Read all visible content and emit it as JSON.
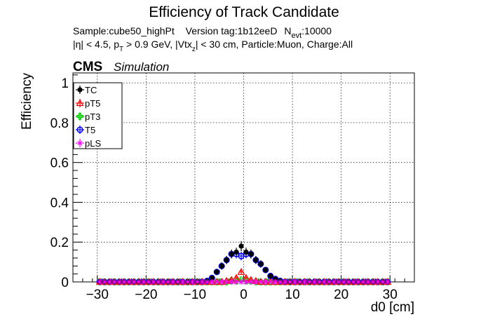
{
  "header": {
    "title": "Efficiency of Track Candidate",
    "line1": {
      "sample": "Sample:cube50_highPt",
      "version": "Version tag:1b12eeD",
      "nevt_label": "N",
      "nevt_sub": "evt",
      "nevt_value": ":10000"
    },
    "line2": {
      "eta_part": "|η| < 4.5, p",
      "pt_sub": "T",
      "pt_part": " > 0.9 GeV, |Vtx",
      "vtx_sub": "z",
      "vtx_part": "| < 30 cm, Particle:Muon, Charge:All"
    }
  },
  "cms": {
    "label": "CMS",
    "tag": "Simulation"
  },
  "colors": {
    "TC": "#000000",
    "pT5": "#ff0000",
    "pT3": "#00cc00",
    "T5": "#0000ff",
    "pLS": "#ff00ff"
  },
  "chart_data": {
    "type": "scatter",
    "xlabel": "d0 [cm]",
    "ylabel": "Efficiency",
    "xlim": [
      -35,
      35
    ],
    "ylim": [
      0,
      1.05
    ],
    "xticks": [
      -30,
      -20,
      -10,
      0,
      10,
      20,
      30
    ],
    "yticks": [
      0,
      0.2,
      0.4,
      0.6,
      0.8,
      1
    ],
    "xtick_labels": [
      "−30",
      "−20",
      "−10",
      "0",
      "10",
      "20",
      "30"
    ],
    "ytick_labels": [
      "0",
      "0.2",
      "0.4",
      "0.6",
      "0.8",
      "1"
    ],
    "grid": true,
    "legend_position": "top-left",
    "x": [
      -29.5,
      -28.5,
      -27.5,
      -26.5,
      -25.5,
      -24.5,
      -23.5,
      -22.5,
      -21.5,
      -20.5,
      -19.5,
      -18.5,
      -17.5,
      -16.5,
      -15.5,
      -14.5,
      -13.5,
      -12.5,
      -11.5,
      -10.5,
      -9.5,
      -8.5,
      -7.5,
      -6.5,
      -5.5,
      -4.5,
      -3.5,
      -2.5,
      -1.5,
      -0.5,
      0.5,
      1.5,
      2.5,
      3.5,
      4.5,
      5.5,
      6.5,
      7.5,
      8.5,
      9.5,
      10.5,
      11.5,
      12.5,
      13.5,
      14.5,
      15.5,
      16.5,
      17.5,
      18.5,
      19.5,
      20.5,
      21.5,
      22.5,
      23.5,
      24.5,
      25.5,
      26.5,
      27.5,
      28.5,
      29.5
    ],
    "series": [
      {
        "name": "TC",
        "values": [
          0,
          0,
          0,
          0,
          0,
          0,
          0,
          0,
          0,
          0,
          0,
          0,
          0,
          0,
          0,
          0,
          0,
          0,
          0,
          0,
          0,
          0,
          0.005,
          0.02,
          0.05,
          0.08,
          0.11,
          0.14,
          0.15,
          0.18,
          0.15,
          0.14,
          0.11,
          0.09,
          0.06,
          0.03,
          0.015,
          0.005,
          0,
          0,
          0,
          0,
          0,
          0,
          0,
          0,
          0,
          0,
          0,
          0,
          0,
          0,
          0,
          0,
          0,
          0,
          0,
          0,
          0,
          0
        ],
        "errors": [
          0,
          0,
          0,
          0,
          0,
          0,
          0,
          0,
          0,
          0,
          0,
          0,
          0,
          0,
          0,
          0,
          0,
          0,
          0,
          0,
          0,
          0,
          0.005,
          0.01,
          0.015,
          0.018,
          0.02,
          0.022,
          0.022,
          0.025,
          0.022,
          0.022,
          0.02,
          0.018,
          0.015,
          0.01,
          0.008,
          0.005,
          0,
          0,
          0,
          0,
          0,
          0,
          0,
          0,
          0,
          0,
          0,
          0,
          0,
          0,
          0,
          0,
          0,
          0,
          0,
          0,
          0,
          0
        ]
      },
      {
        "name": "pT5",
        "values": [
          0,
          0,
          0,
          0,
          0,
          0,
          0,
          0,
          0,
          0,
          0,
          0,
          0,
          0,
          0,
          0,
          0,
          0,
          0,
          0,
          0,
          0,
          0,
          0,
          0,
          0,
          0.005,
          0.01,
          0.02,
          0.05,
          0.02,
          0.01,
          0.005,
          0,
          0,
          0,
          0,
          0,
          0,
          0,
          0,
          0,
          0,
          0,
          0,
          0,
          0,
          0,
          0,
          0,
          0,
          0,
          0,
          0,
          0,
          0,
          0,
          0,
          0,
          0
        ],
        "errors": [
          0,
          0,
          0,
          0,
          0,
          0,
          0,
          0,
          0,
          0,
          0,
          0,
          0,
          0,
          0,
          0,
          0,
          0,
          0,
          0,
          0,
          0,
          0,
          0,
          0,
          0,
          0.005,
          0.008,
          0.01,
          0.015,
          0.01,
          0.008,
          0.005,
          0,
          0,
          0,
          0,
          0,
          0,
          0,
          0,
          0,
          0,
          0,
          0,
          0,
          0,
          0,
          0,
          0,
          0,
          0,
          0,
          0,
          0,
          0,
          0,
          0,
          0,
          0
        ]
      },
      {
        "name": "pT3",
        "values": [
          0,
          0,
          0,
          0,
          0,
          0,
          0,
          0,
          0,
          0,
          0,
          0,
          0,
          0,
          0,
          0,
          0,
          0,
          0,
          0,
          0,
          0,
          0,
          0,
          0,
          0,
          0,
          0.005,
          0.005,
          0.01,
          0.005,
          0.005,
          0,
          0,
          0,
          0,
          0,
          0,
          0,
          0,
          0,
          0,
          0,
          0,
          0,
          0,
          0,
          0,
          0,
          0,
          0,
          0,
          0,
          0,
          0,
          0,
          0,
          0,
          0,
          0
        ],
        "errors": [
          0,
          0,
          0,
          0,
          0,
          0,
          0,
          0,
          0,
          0,
          0,
          0,
          0,
          0,
          0,
          0,
          0,
          0,
          0,
          0,
          0,
          0,
          0,
          0,
          0,
          0,
          0,
          0.004,
          0.004,
          0.006,
          0.004,
          0.004,
          0,
          0,
          0,
          0,
          0,
          0,
          0,
          0,
          0,
          0,
          0,
          0,
          0,
          0,
          0,
          0,
          0,
          0,
          0,
          0,
          0,
          0,
          0,
          0,
          0,
          0,
          0,
          0
        ]
      },
      {
        "name": "T5",
        "values": [
          0,
          0,
          0,
          0,
          0,
          0,
          0,
          0,
          0,
          0,
          0,
          0,
          0,
          0,
          0,
          0,
          0,
          0,
          0,
          0,
          0,
          0,
          0.005,
          0.02,
          0.05,
          0.08,
          0.11,
          0.14,
          0.14,
          0.13,
          0.14,
          0.14,
          0.11,
          0.09,
          0.06,
          0.03,
          0.015,
          0.005,
          0,
          0,
          0,
          0,
          0,
          0,
          0,
          0,
          0,
          0,
          0,
          0,
          0,
          0,
          0,
          0,
          0,
          0,
          0,
          0,
          0,
          0
        ],
        "errors": [
          0,
          0,
          0,
          0,
          0,
          0,
          0,
          0,
          0,
          0,
          0,
          0,
          0,
          0,
          0,
          0,
          0,
          0,
          0,
          0,
          0,
          0,
          0.005,
          0.01,
          0.015,
          0.018,
          0.02,
          0.022,
          0.022,
          0.022,
          0.022,
          0.022,
          0.02,
          0.018,
          0.015,
          0.01,
          0.008,
          0.005,
          0,
          0,
          0,
          0,
          0,
          0,
          0,
          0,
          0,
          0,
          0,
          0,
          0,
          0,
          0,
          0,
          0,
          0,
          0,
          0,
          0,
          0
        ]
      },
      {
        "name": "pLS",
        "values": [
          0,
          0,
          0,
          0,
          0,
          0,
          0,
          0,
          0,
          0,
          0,
          0,
          0,
          0,
          0,
          0,
          0,
          0,
          0,
          0,
          0,
          0,
          0,
          0,
          0,
          0,
          0,
          0,
          0,
          0,
          0,
          0,
          0,
          0,
          0,
          0,
          0,
          0,
          0,
          0,
          0,
          0,
          0,
          0,
          0,
          0,
          0,
          0,
          0,
          0,
          0,
          0,
          0,
          0,
          0,
          0,
          0,
          0,
          0,
          0
        ],
        "errors": [
          0,
          0,
          0,
          0,
          0,
          0,
          0,
          0,
          0,
          0,
          0,
          0,
          0,
          0,
          0,
          0,
          0,
          0,
          0,
          0,
          0,
          0,
          0,
          0,
          0,
          0,
          0,
          0,
          0,
          0,
          0,
          0,
          0,
          0,
          0,
          0,
          0,
          0,
          0,
          0,
          0,
          0,
          0,
          0,
          0,
          0,
          0,
          0,
          0,
          0,
          0,
          0,
          0,
          0,
          0,
          0,
          0,
          0,
          0,
          0
        ]
      }
    ],
    "draw_order": [
      "pT3",
      "T5",
      "pT5",
      "TC",
      "pLS"
    ]
  }
}
